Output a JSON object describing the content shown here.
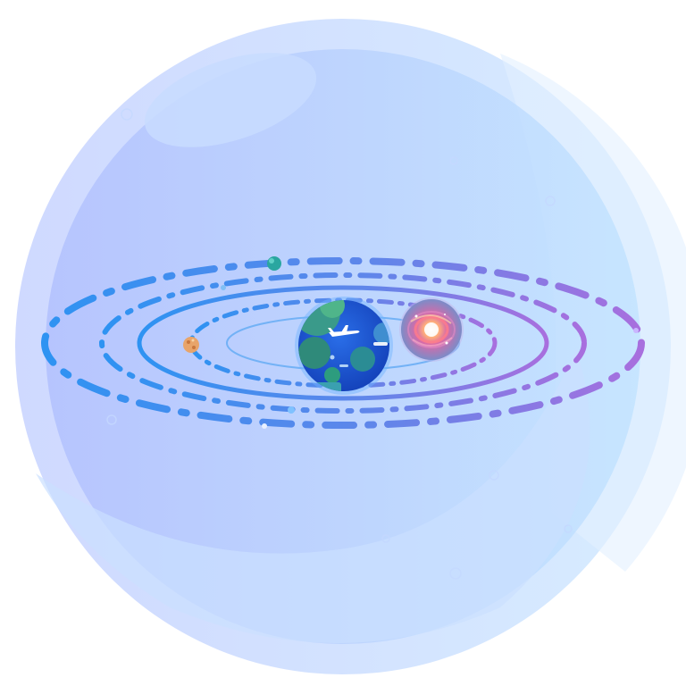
{
  "colors": {
    "background": "#ffffff",
    "sphere_light": "#dde8ff",
    "sphere_mid": "#bcd4ff",
    "sphere_inner_left": "#b3c4ff",
    "sphere_inner_right": "#bde1ff",
    "orbit_blue": "#2f8cf0",
    "orbit_violet": "#a06ee0",
    "earth_ocean": "#1e55d6",
    "earth_land": "#3a9a8a",
    "earth_glow": "#6eb4ff",
    "galaxy_planet": "#7f8fc8",
    "galaxy_core": "#ff6e7a",
    "mars": "#e8a46a",
    "teal_moon": "#2aa6a0"
  },
  "icons": {
    "earth": "earth-globe-icon",
    "airplane": "airplane-icon",
    "galaxy_planet": "galaxy-planet-icon",
    "small_planet": "small-planet-icon",
    "moon": "teal-moon-icon"
  },
  "orbits": [
    {
      "name": "orbit-innermost",
      "style": "solid-thin"
    },
    {
      "name": "orbit-inner",
      "style": "dash-dot"
    },
    {
      "name": "orbit-middle",
      "style": "solid-thick"
    },
    {
      "name": "orbit-outer",
      "style": "dash-dot"
    },
    {
      "name": "orbit-outermost",
      "style": "dash-dot-bold"
    }
  ]
}
